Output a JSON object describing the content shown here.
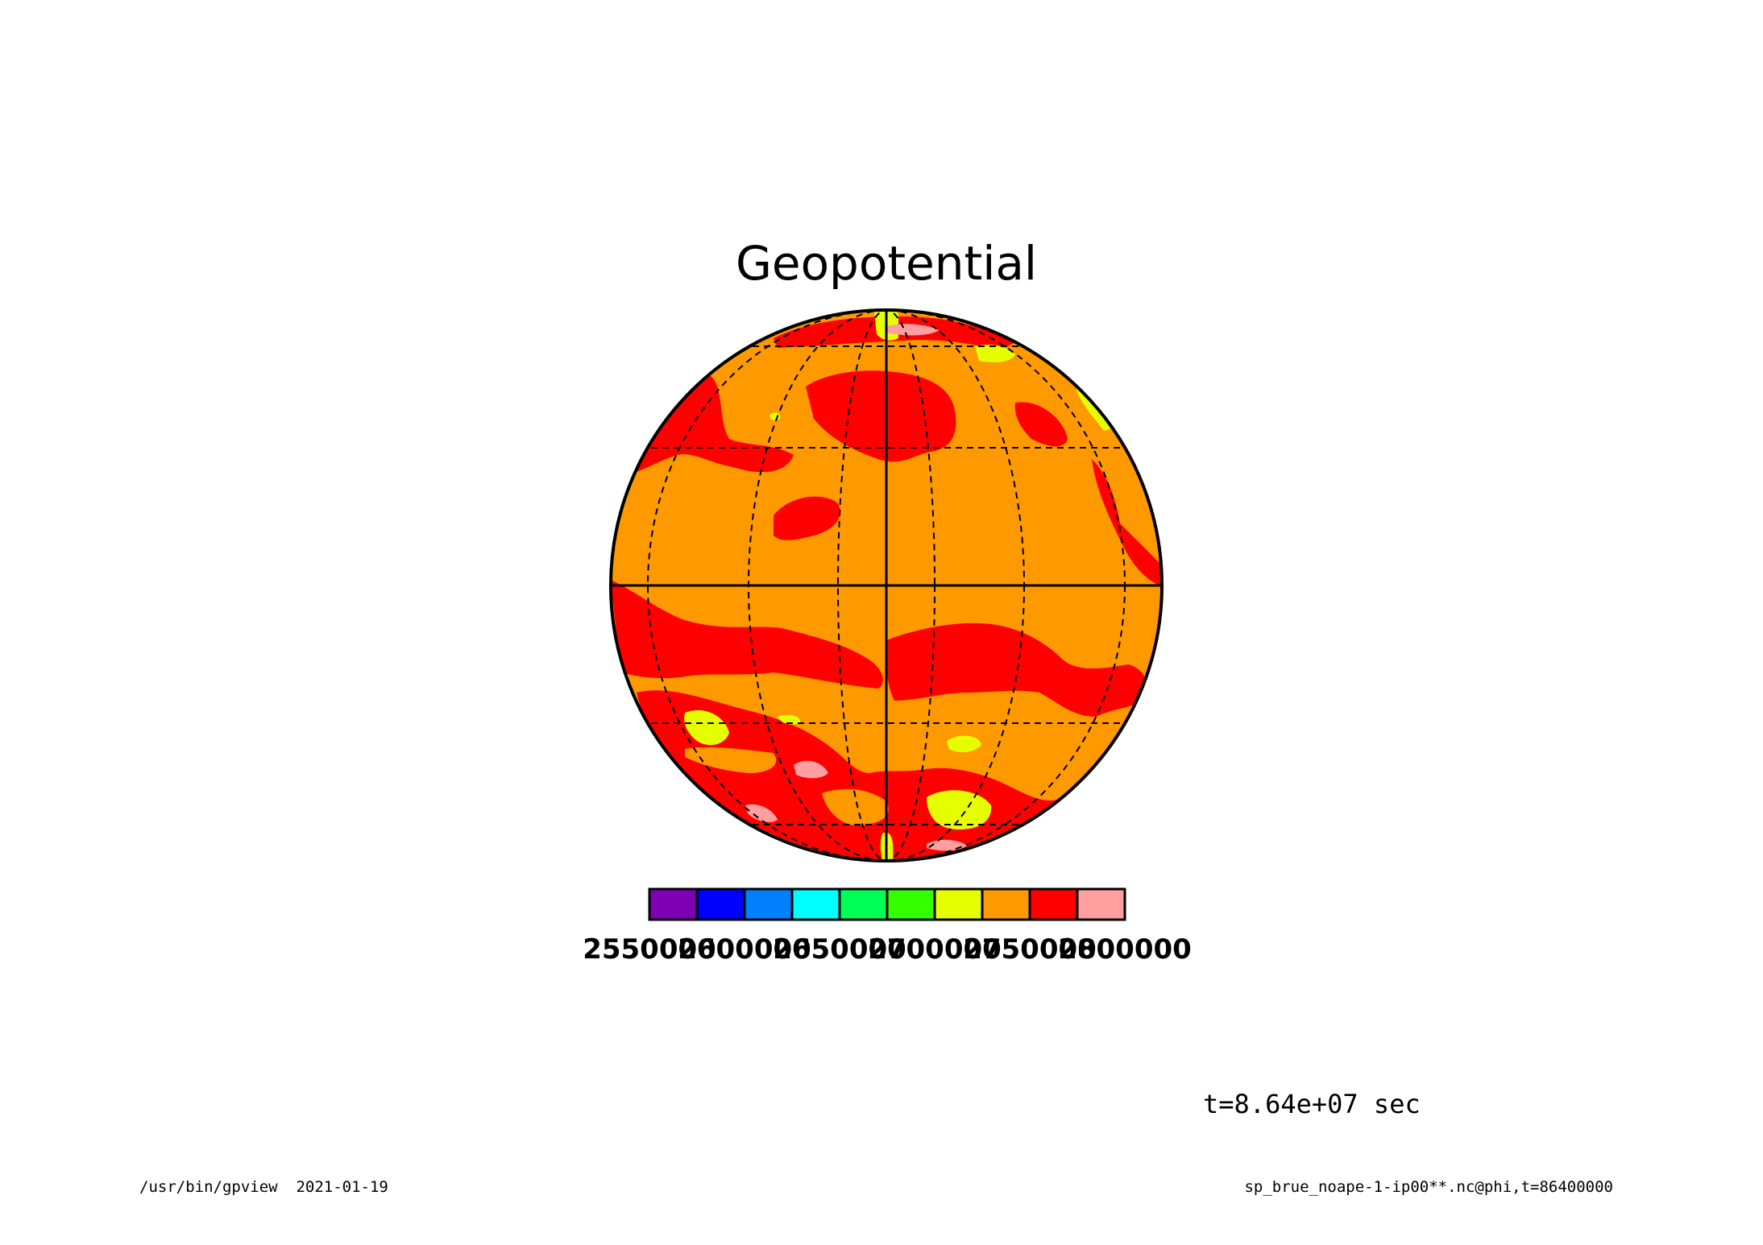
{
  "title": "Geopotential",
  "time_label": "t=8.64e+07 sec",
  "footer": {
    "left": "/usr/bin/gpview  2021-01-19",
    "right": "sp_brue_noape-1-ip00**.nc@phi,t=86400000"
  },
  "projection": "orthographic",
  "colors": {
    "background_field": "#ff9900",
    "band_red": "#ff0000",
    "band_yellow": "#e6ff00",
    "band_pink": "#ff9f9f",
    "outline": "#000000"
  },
  "colorbar": {
    "colors": [
      "#7f00b4",
      "#0000ff",
      "#0080ff",
      "#00ffff",
      "#00ff55",
      "#33ff00",
      "#e6ff00",
      "#ff9900",
      "#ff0000",
      "#ff9f9f"
    ],
    "ticks": [
      "2550000",
      "2600000",
      "2650000",
      "2700000",
      "2750000",
      "2800000"
    ]
  }
}
